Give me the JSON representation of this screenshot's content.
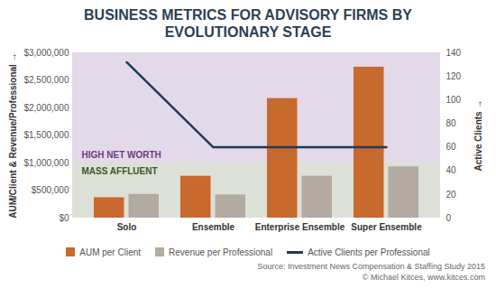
{
  "chart_data": {
    "type": "bar",
    "title": "BUSINESS METRICS FOR ADVISORY FIRMS BY EVOLUTIONARY STAGE",
    "categories": [
      "Solo",
      "Ensemble",
      "Enterprise Ensemble",
      "Super Ensemble"
    ],
    "y_label": "AUM/Client & Revenue/Professional",
    "y2_label": "Active Clients",
    "ylim": [
      0,
      3000000
    ],
    "yticks": [
      {
        "value": 0,
        "label": "$0"
      },
      {
        "value": 500000,
        "label": "$500,000"
      },
      {
        "value": 1000000,
        "label": "$1,000,000"
      },
      {
        "value": 1500000,
        "label": "$1,500,000"
      },
      {
        "value": 2000000,
        "label": "$2,000,000"
      },
      {
        "value": 2500000,
        "label": "$2,500,000"
      },
      {
        "value": 3000000,
        "label": "$3,000,000"
      }
    ],
    "y2lim": [
      0,
      140
    ],
    "y2ticks": [
      0,
      20,
      40,
      60,
      80,
      100,
      120,
      140
    ],
    "series": [
      {
        "name": "AUM per Client",
        "type": "bar",
        "color": "#c8692d",
        "values": [
          370000,
          760000,
          2170000,
          2740000
        ]
      },
      {
        "name": "Revenue per Professional",
        "type": "bar",
        "color": "#b3aaa2",
        "values": [
          430000,
          420000,
          760000,
          930000
        ]
      },
      {
        "name": "Active Clients per Professional",
        "type": "line",
        "axis": "y2",
        "color": "#1f3a5a",
        "values": [
          132,
          60,
          60,
          60
        ]
      }
    ],
    "bands": [
      {
        "label": "HIGH NET WORTH",
        "from": 1000000,
        "to": 3000000,
        "color": "#e3d9e9",
        "text_color": "#6b3f7a"
      },
      {
        "label": "MASS AFFLUENT",
        "from": 0,
        "to": 1000000,
        "color": "#dde0d7",
        "text_color": "#3d5a2b"
      }
    ],
    "source": "Source: Investment News Compensation & Staffing Study 2015",
    "credit": "© Michael Kitces, www.kitces.com",
    "legend": "bottom",
    "grid": false
  }
}
